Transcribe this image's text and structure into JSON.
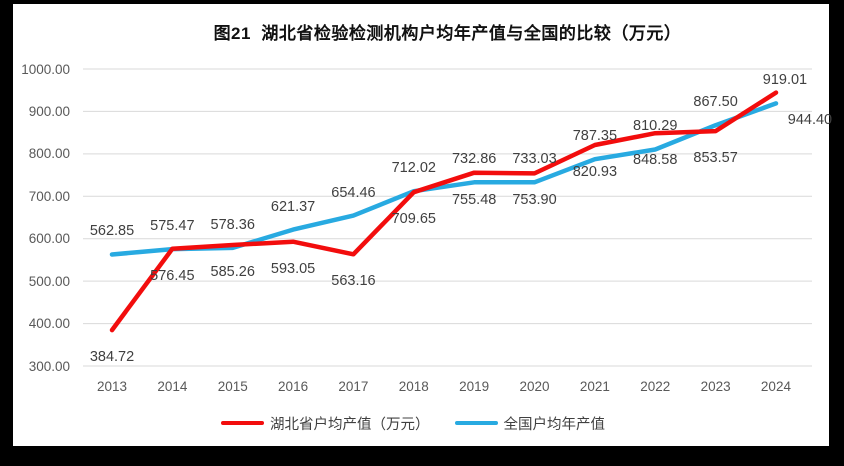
{
  "chart": {
    "title": "图21  湖北省检验检测机构户均年产值与全国的比较（万元）"
  },
  "chart_data": {
    "type": "line",
    "title": "图21 湖北省检验检测机构户均年产值与全国的比较（万元）",
    "categories": [
      "2013",
      "2014",
      "2015",
      "2016",
      "2017",
      "2018",
      "2019",
      "2020",
      "2021",
      "2022",
      "2023",
      "2024"
    ],
    "series": [
      {
        "id": "hubei",
        "name": "湖北省户均产值（万元）",
        "color": "#F20D0D",
        "label_position": "below",
        "values": [
          384.72,
          576.45,
          585.26,
          593.05,
          563.16,
          709.65,
          755.48,
          753.9,
          820.93,
          848.58,
          853.57,
          944.4
        ]
      },
      {
        "id": "national",
        "name": "全国户均年产值",
        "color": "#28AAE1",
        "label_position": "above",
        "values": [
          562.85,
          575.47,
          578.36,
          621.37,
          654.46,
          712.02,
          732.86,
          733.03,
          787.35,
          810.29,
          867.5,
          919.01
        ]
      }
    ],
    "y_axis": {
      "min": 300,
      "max": 1000,
      "step": 100,
      "tick_format": "2-decimals"
    },
    "x_axis_label": "",
    "y_axis_label": "",
    "grid": true,
    "gridline_color": "#D9D9D9",
    "legend_position": "bottom",
    "label_color": "#404040",
    "tick_color": "#595959"
  }
}
